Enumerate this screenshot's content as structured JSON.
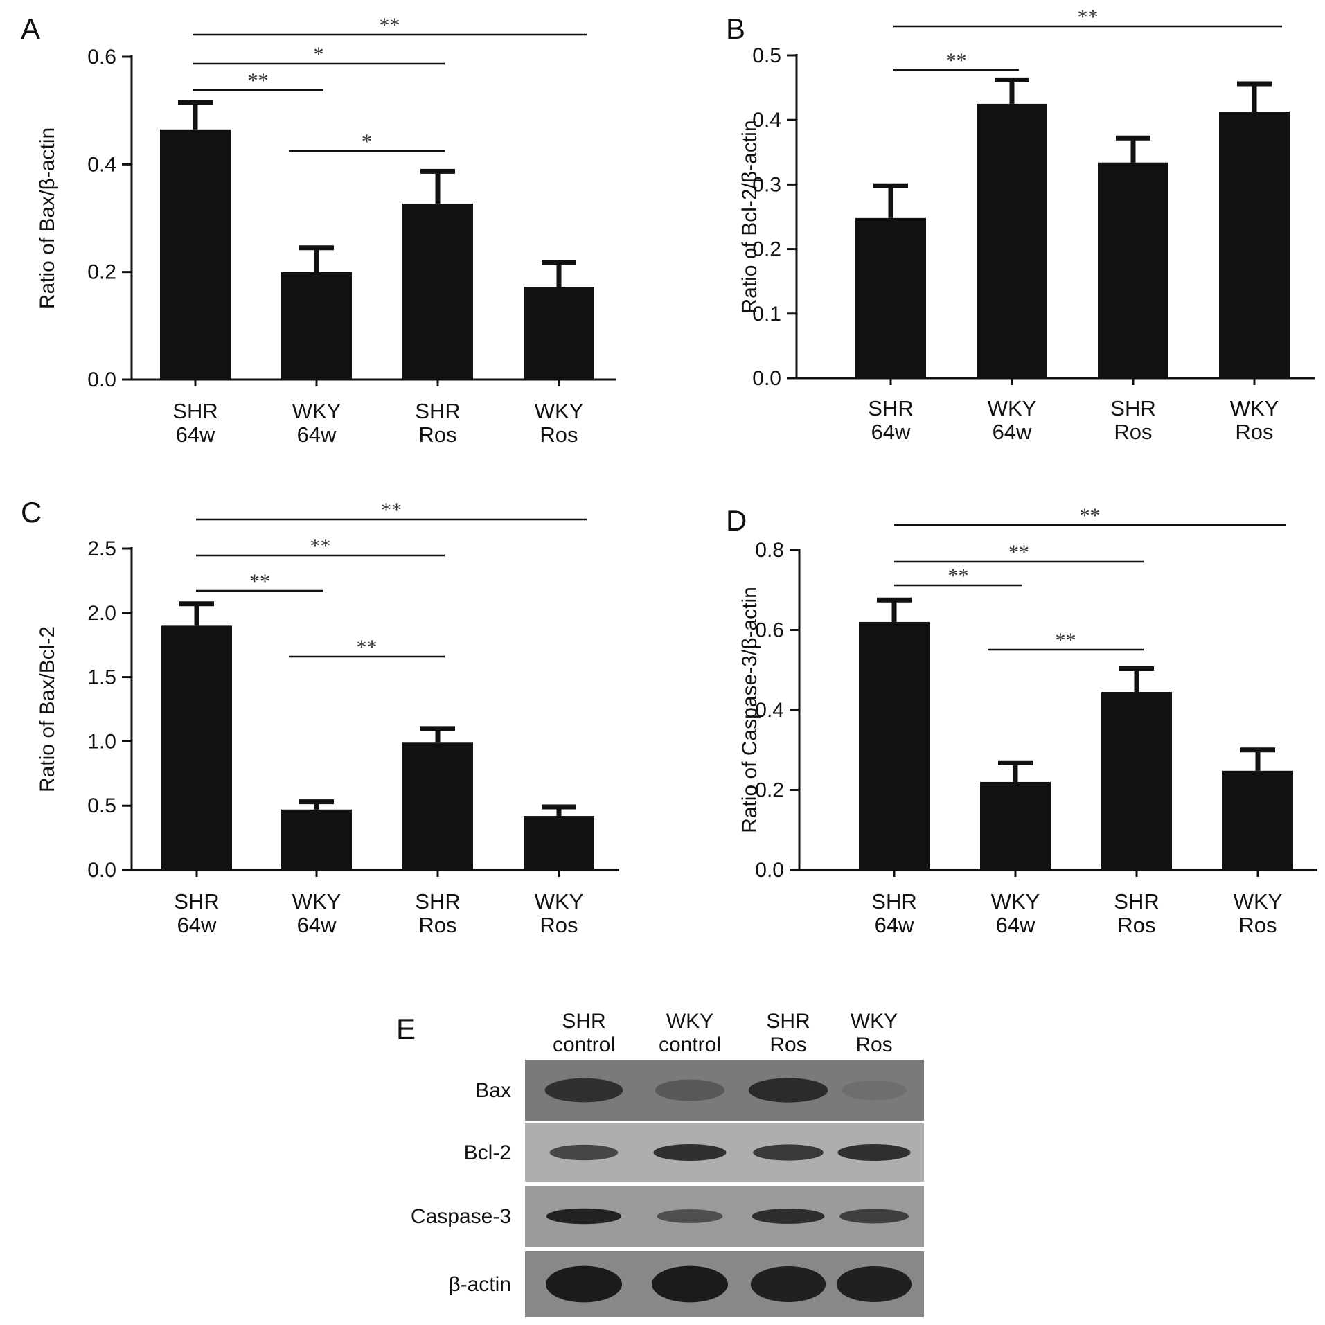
{
  "chart_data": [
    {
      "type": "bar",
      "panel": "A",
      "ylabel": "Ratio of Bax/β-actin",
      "ylim": [
        0,
        0.6
      ],
      "yticks": [
        "0.0",
        "0.2",
        "0.4",
        "0.6"
      ],
      "categories": [
        [
          "SHR",
          "64w"
        ],
        [
          "WKY",
          "64w"
        ],
        [
          "SHR",
          "Ros"
        ],
        [
          "WKY",
          "Ros"
        ]
      ],
      "values": [
        0.465,
        0.2,
        0.327,
        0.172
      ],
      "errors": [
        0.05,
        0.045,
        0.06,
        0.045
      ],
      "significance": [
        {
          "from": 0,
          "to": 3,
          "label": "**"
        },
        {
          "from": 0,
          "to": 2,
          "label": "*"
        },
        {
          "from": 0,
          "to": 1,
          "label": "**"
        },
        {
          "from": 1,
          "to": 2,
          "label": "*"
        }
      ]
    },
    {
      "type": "bar",
      "panel": "B",
      "ylabel": "Ratio of Bcl-2/β-actin",
      "ylim": [
        0,
        0.5
      ],
      "yticks": [
        "0.0",
        "0.1",
        "0.2",
        "0.3",
        "0.4",
        "0.5"
      ],
      "categories": [
        [
          "SHR",
          "64w"
        ],
        [
          "WKY",
          "64w"
        ],
        [
          "SHR",
          "Ros"
        ],
        [
          "WKY",
          "Ros"
        ]
      ],
      "values": [
        0.248,
        0.425,
        0.334,
        0.413
      ],
      "errors": [
        0.05,
        0.037,
        0.038,
        0.043
      ],
      "significance": [
        {
          "from": 0,
          "to": 3,
          "label": "**"
        },
        {
          "from": 0,
          "to": 1,
          "label": "**"
        }
      ]
    },
    {
      "type": "bar",
      "panel": "C",
      "ylabel": "Ratio of Bax/Bcl-2",
      "ylim": [
        0,
        2.5
      ],
      "yticks": [
        "0.0",
        "0.5",
        "1.0",
        "1.5",
        "2.0",
        "2.5"
      ],
      "categories": [
        [
          "SHR",
          "64w"
        ],
        [
          "WKY",
          "64w"
        ],
        [
          "SHR",
          "Ros"
        ],
        [
          "WKY",
          "Ros"
        ]
      ],
      "values": [
        1.9,
        0.47,
        0.99,
        0.42
      ],
      "errors": [
        0.17,
        0.06,
        0.11,
        0.07
      ],
      "significance": [
        {
          "from": 0,
          "to": 3,
          "label": "**"
        },
        {
          "from": 0,
          "to": 2,
          "label": "**"
        },
        {
          "from": 0,
          "to": 1,
          "label": "**"
        },
        {
          "from": 1,
          "to": 2,
          "label": "**"
        }
      ]
    },
    {
      "type": "bar",
      "panel": "D",
      "ylabel": "Ratio of Caspase-3/β-actin",
      "ylim": [
        0,
        0.8
      ],
      "yticks": [
        "0.0",
        "0.2",
        "0.4",
        "0.6",
        "0.8"
      ],
      "categories": [
        [
          "SHR",
          "64w"
        ],
        [
          "WKY",
          "64w"
        ],
        [
          "SHR",
          "Ros"
        ],
        [
          "WKY",
          "Ros"
        ]
      ],
      "values": [
        0.62,
        0.22,
        0.445,
        0.248
      ],
      "errors": [
        0.055,
        0.048,
        0.058,
        0.052
      ],
      "significance": [
        {
          "from": 0,
          "to": 3,
          "label": "**"
        },
        {
          "from": 0,
          "to": 2,
          "label": "**"
        },
        {
          "from": 0,
          "to": 1,
          "label": "**"
        },
        {
          "from": 1,
          "to": 2,
          "label": "**"
        }
      ]
    }
  ],
  "blot": {
    "panel": "E",
    "lanes": [
      [
        "SHR",
        "control"
      ],
      [
        "WKY",
        "control"
      ],
      [
        "SHR",
        "Ros"
      ],
      [
        "WKY",
        "Ros"
      ]
    ],
    "rows": [
      {
        "label": "Bax",
        "intensity": [
          0.8,
          0.45,
          0.85,
          0.25
        ]
      },
      {
        "label": "Bcl-2",
        "intensity": [
          0.65,
          0.85,
          0.75,
          0.85
        ]
      },
      {
        "label": "Caspase-3",
        "intensity": [
          0.95,
          0.55,
          0.85,
          0.7
        ]
      },
      {
        "label": "β-actin",
        "intensity": [
          1.0,
          1.0,
          0.95,
          0.95
        ]
      }
    ]
  }
}
